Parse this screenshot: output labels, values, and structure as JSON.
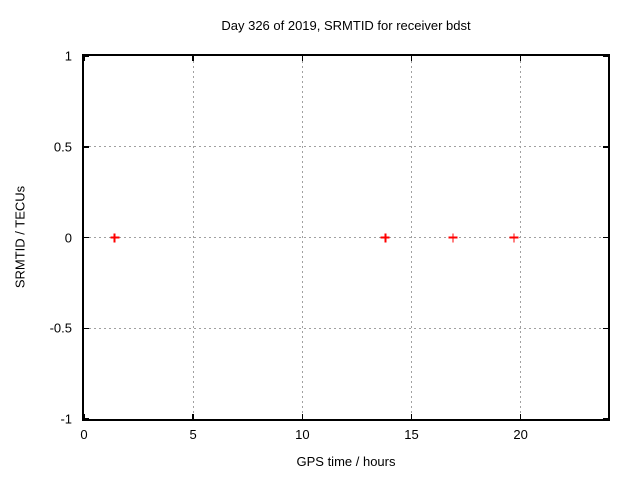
{
  "colors": {
    "background": "#ffffff",
    "axis": "#000000",
    "grid": "#a0a0a0",
    "marker": "#ff0000"
  },
  "chart_data": {
    "type": "scatter",
    "title": "Day 326 of 2019, SRMTID for receiver bdst",
    "xlabel": "GPS time / hours",
    "ylabel": "SRMTID / TECUs",
    "xlim": [
      0,
      24
    ],
    "ylim": [
      -1,
      1
    ],
    "xticks": [
      0,
      5,
      10,
      15,
      20
    ],
    "yticks": [
      -1,
      -0.5,
      0,
      0.5,
      1
    ],
    "grid": true,
    "legend": "none",
    "series": [
      {
        "name": "SRMTID",
        "marker": "plus",
        "color": "#ff0000",
        "points": [
          [
            1.4,
            0
          ],
          [
            13.8,
            0
          ],
          [
            16.9,
            0
          ],
          [
            19.7,
            0
          ]
        ]
      }
    ]
  }
}
